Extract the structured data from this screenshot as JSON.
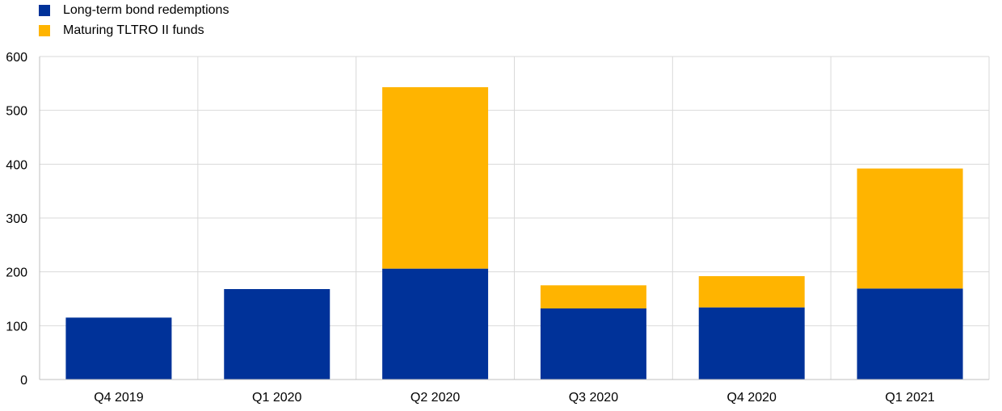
{
  "chart_data": {
    "type": "bar",
    "stacked": true,
    "categories": [
      "Q4 2019",
      "Q1 2020",
      "Q2 2020",
      "Q3 2020",
      "Q4 2020",
      "Q1 2021"
    ],
    "series": [
      {
        "name": "Long-term bond redemptions",
        "color": "#003299",
        "values": [
          115,
          168,
          206,
          132,
          134,
          169
        ]
      },
      {
        "name": "Maturing TLTRO II funds",
        "color": "#FFB400",
        "values": [
          0,
          0,
          337,
          43,
          58,
          223
        ]
      }
    ],
    "ylim": [
      0,
      600
    ],
    "yticks": [
      0,
      100,
      200,
      300,
      400,
      500,
      600
    ],
    "ytick_labels": [
      "0",
      "100",
      "200",
      "300",
      "400",
      "500",
      "600"
    ],
    "grid": true,
    "legend": "top-left",
    "title": "",
    "xlabel": "",
    "ylabel": ""
  }
}
